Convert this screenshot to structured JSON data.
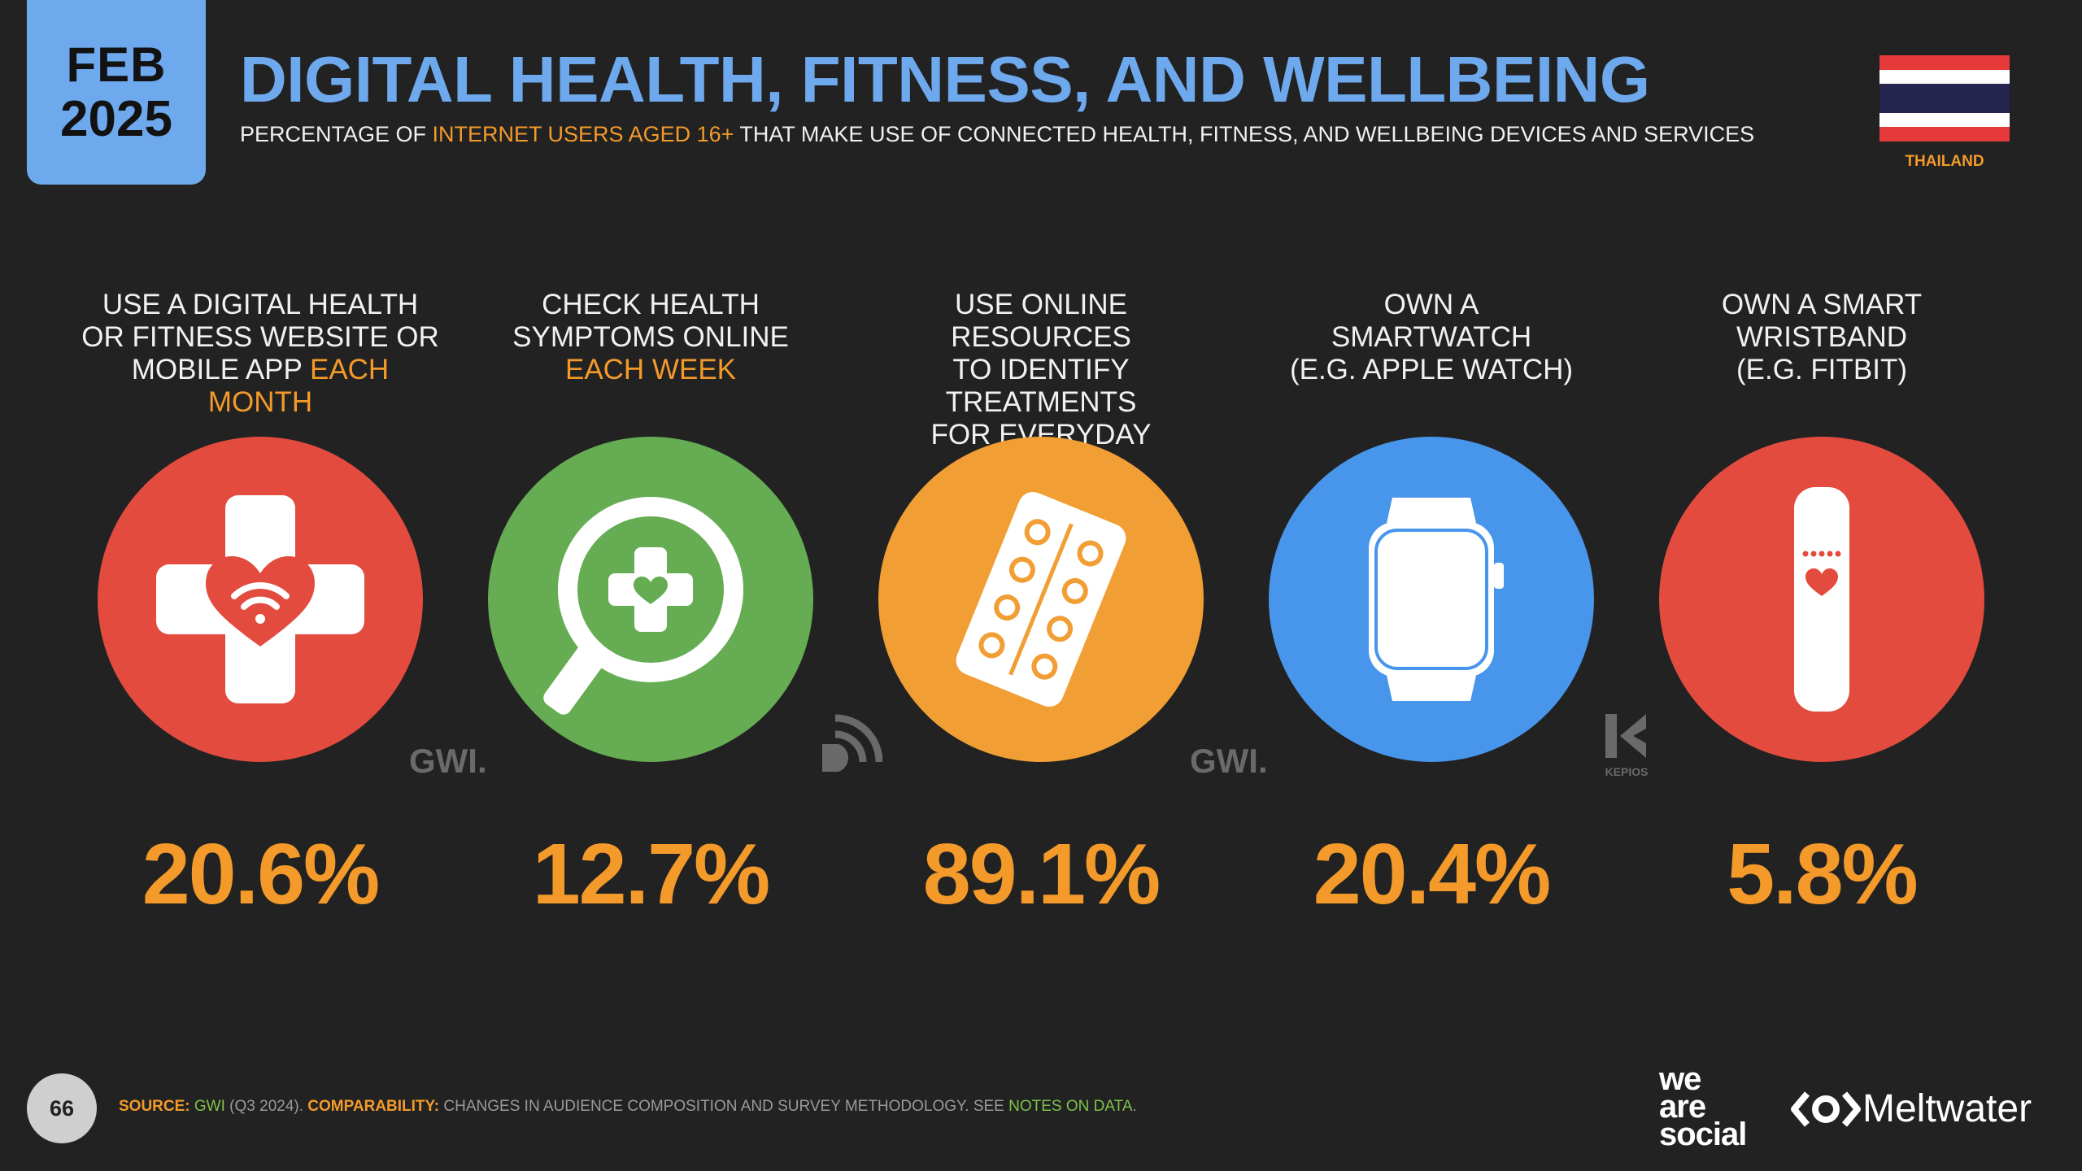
{
  "badge": {
    "month": "FEB",
    "year": "2025"
  },
  "header": {
    "title": "DIGITAL HEALTH, FITNESS, AND WELLBEING",
    "subtitle_pre": "PERCENTAGE OF ",
    "subtitle_hl": "INTERNET USERS AGED 16+",
    "subtitle_post": " THAT MAKE USE OF CONNECTED HEALTH, FITNESS, AND WELLBEING DEVICES AND SERVICES"
  },
  "country": "THAILAND",
  "colors": {
    "blue": "#6ea9ee",
    "orange": "#f39a2a",
    "red": "#e34b3f",
    "green": "#65ac52",
    "amber": "#f19e35",
    "watch_blue": "#4896ec"
  },
  "items": [
    {
      "line1": "USE A DIGITAL HEALTH",
      "line2": "OR FITNESS WEBSITE OR",
      "line3": "MOBILE APP ",
      "line3_hl": "EACH MONTH",
      "value": "20.6%",
      "icon": "medical-cross-heart-icon"
    },
    {
      "line1": "CHECK HEALTH",
      "line2": "SYMPTOMS ONLINE",
      "line3": "",
      "line3_hl": "EACH WEEK",
      "value": "12.7%",
      "icon": "magnifier-cross-icon"
    },
    {
      "line1": "USE ONLINE RESOURCES",
      "line2": "TO IDENTIFY TREATMENTS",
      "line3": "FOR EVERYDAY AILMENTS",
      "line3_hl": "",
      "value": "89.1%",
      "icon": "pill-blister-icon"
    },
    {
      "line1": "OWN A",
      "line2": "SMARTWATCH",
      "line3": "(E.G. APPLE WATCH)",
      "line3_hl": "",
      "value": "20.4%",
      "icon": "smartwatch-icon"
    },
    {
      "line1": "OWN A SMART",
      "line2": "WRISTBAND",
      "line3": "(E.G. FITBIT)",
      "line3_hl": "",
      "value": "5.8%",
      "icon": "wristband-icon"
    }
  ],
  "source_logos": {
    "gwi": "GWI.",
    "kepios": "KEPIOS"
  },
  "footer": {
    "page": "66",
    "source_label": "SOURCE:",
    "source_name": "GWI",
    "source_rest": " (Q3 2024). ",
    "comp_label": "COMPARABILITY:",
    "comp_text": " CHANGES IN AUDIENCE COMPOSITION AND SURVEY METHODOLOGY. SEE ",
    "notes": "NOTES ON DATA",
    "end": "."
  },
  "brands": {
    "was1": "we",
    "was2": "are",
    "was3": "social",
    "meltwater": "Meltwater"
  }
}
